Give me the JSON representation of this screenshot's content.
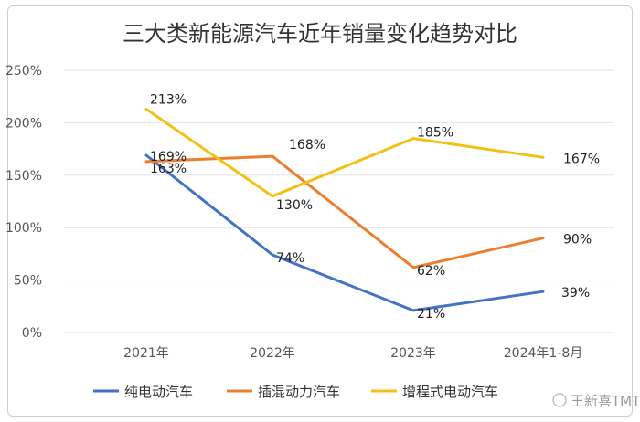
{
  "chart_data": {
    "type": "line",
    "title": "三大类新能源汽车近年销量变化趋势对比",
    "categories": [
      "2021年",
      "2022年",
      "2023年",
      "2024年1-8月"
    ],
    "yticks": [
      "0%",
      "50%",
      "100%",
      "150%",
      "200%",
      "250%"
    ],
    "ylim": [
      0,
      250
    ],
    "grid": true,
    "legend_position": "bottom",
    "series": [
      {
        "name": "纯电动汽车",
        "color": "#4472C4",
        "values": [
          169,
          74,
          21,
          39
        ],
        "labels": [
          "169%",
          "74%",
          "21%",
          "39%"
        ]
      },
      {
        "name": "插混动力汽车",
        "color": "#ED7D31",
        "values": [
          163,
          168,
          62,
          90
        ],
        "labels": [
          "163%",
          "168%",
          "62%",
          "90%"
        ]
      },
      {
        "name": "增程式电动汽车",
        "color": "#F2C114",
        "values": [
          213,
          130,
          185,
          167
        ],
        "labels": [
          "213%",
          "130%",
          "185%",
          "167%"
        ]
      }
    ]
  },
  "watermark": {
    "text": "王新喜TMT"
  }
}
